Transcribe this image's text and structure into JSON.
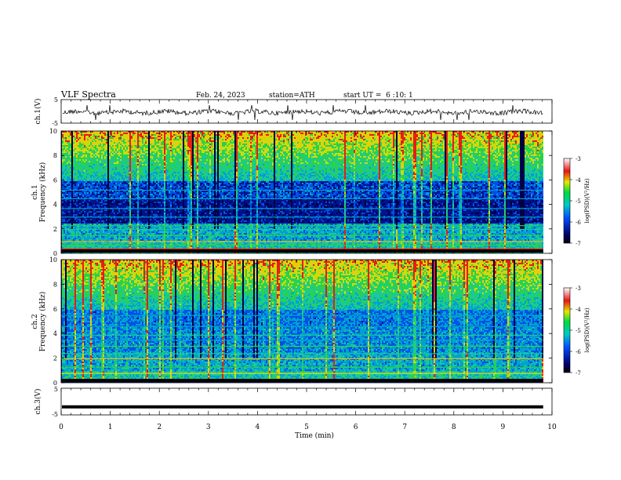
{
  "header": {
    "title": "VLF Spectra",
    "date": "Feb. 24, 2023",
    "station": "station=ATH",
    "start_ut": "start UT =  6 :10: 1"
  },
  "chart_data": [
    {
      "type": "line",
      "ylabel": "ch.1(V)",
      "ylim": [
        -5,
        5
      ],
      "y_ticks": [
        "5",
        "-5"
      ],
      "series": [
        {
          "description": "noisy waveform",
          "mean": 0,
          "spikes": [
            5,
            5.3,
            7.9
          ]
        }
      ]
    },
    {
      "type": "heatmap",
      "ylabel_line1": "ch.1",
      "ylabel_line2": "Frequency (kHz)",
      "ylim": [
        0,
        10
      ],
      "y_ticks": [
        "0",
        "2",
        "4",
        "6",
        "8",
        "10"
      ],
      "colorbar": {
        "label": "log(PSD)(V²/Hz)",
        "range": [
          -7,
          -3
        ],
        "ticks": [
          "-3",
          "-4",
          "-5",
          "-6",
          "-7"
        ]
      }
    },
    {
      "type": "heatmap",
      "ylabel_line1": "ch.2",
      "ylabel_line2": "Frequency (kHz)",
      "ylim": [
        0,
        10
      ],
      "y_ticks": [
        "0",
        "2",
        "4",
        "6",
        "8",
        "10"
      ],
      "colorbar": {
        "label": "log(PSD)(V²/Hz)",
        "range": [
          -7,
          -3
        ],
        "ticks": [
          "-3",
          "-4",
          "-5",
          "-6",
          "-7"
        ]
      }
    },
    {
      "type": "line",
      "ylabel": "ch.3(V)",
      "ylim": [
        -5,
        5
      ],
      "y_ticks": [
        "5",
        "-5"
      ],
      "series": [
        {
          "description": "flat line",
          "value": -2
        }
      ]
    }
  ],
  "x_axis": {
    "label": "Time (min)",
    "ticks": [
      "0",
      "1",
      "2",
      "3",
      "4",
      "5",
      "6",
      "7",
      "8",
      "9",
      "10"
    ],
    "xlim": [
      0,
      10
    ],
    "data_end": 9.82
  },
  "colors": {
    "axis": "#000000",
    "deep_blue": "#000c8c",
    "cyan": "#00b4c8",
    "green": "#1ed35a",
    "yellow": "#e6e600",
    "red": "#d21414"
  }
}
